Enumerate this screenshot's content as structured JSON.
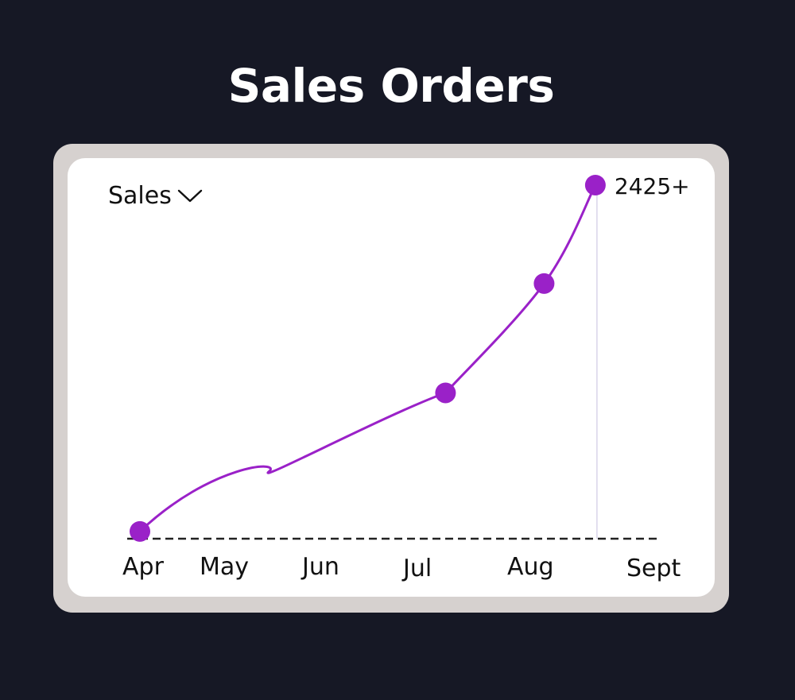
{
  "title": "Sales Orders",
  "selector": {
    "label": "Sales",
    "icon": "chevron-down-icon"
  },
  "colors": {
    "background": "#161825",
    "frame": "#d6d1cf",
    "card": "#ffffff",
    "line": "#9a21c8",
    "axis": "#222222",
    "marker": "#d9d5ea"
  },
  "chart_data": {
    "type": "line",
    "categories": [
      "Apr",
      "May",
      "Jun",
      "Jul",
      "Aug",
      "Sept"
    ],
    "series": [
      {
        "x": [
          0,
          3.1,
          4.1,
          4.62
        ],
        "y": [
          50,
          1000,
          1750,
          2425
        ],
        "marked": [
          true,
          true,
          true,
          true
        ]
      }
    ],
    "annotation": {
      "text": "2425+",
      "x": 4.62,
      "y": 2425
    },
    "ylim": [
      0,
      2560
    ],
    "grid": false,
    "baseline": "dashed"
  }
}
